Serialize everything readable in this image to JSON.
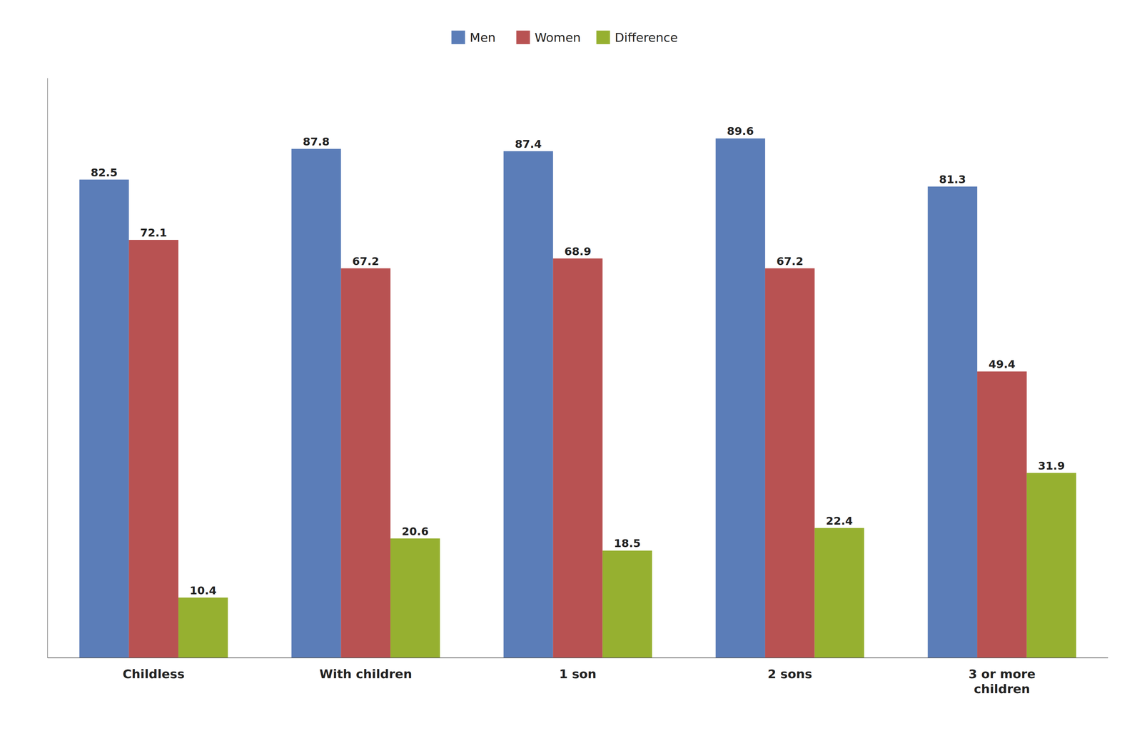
{
  "chart_data": {
    "type": "bar",
    "categories": [
      "Childless",
      "With children",
      "1 son",
      "2 sons",
      "3 or more\nchildren"
    ],
    "series": [
      {
        "name": "Men",
        "color": "#5B7DB8",
        "values": [
          82.5,
          87.8,
          87.4,
          89.6,
          81.3
        ]
      },
      {
        "name": "Women",
        "color": "#B85252",
        "values": [
          72.1,
          67.2,
          68.9,
          67.2,
          49.4
        ]
      },
      {
        "name": "Difference",
        "color": "#96B030",
        "values": [
          10.4,
          20.6,
          18.5,
          22.4,
          31.9
        ]
      }
    ],
    "ylim": [
      0,
      100
    ],
    "grid": false,
    "legend": "top",
    "data_labels": true,
    "tick_labels": "x"
  }
}
